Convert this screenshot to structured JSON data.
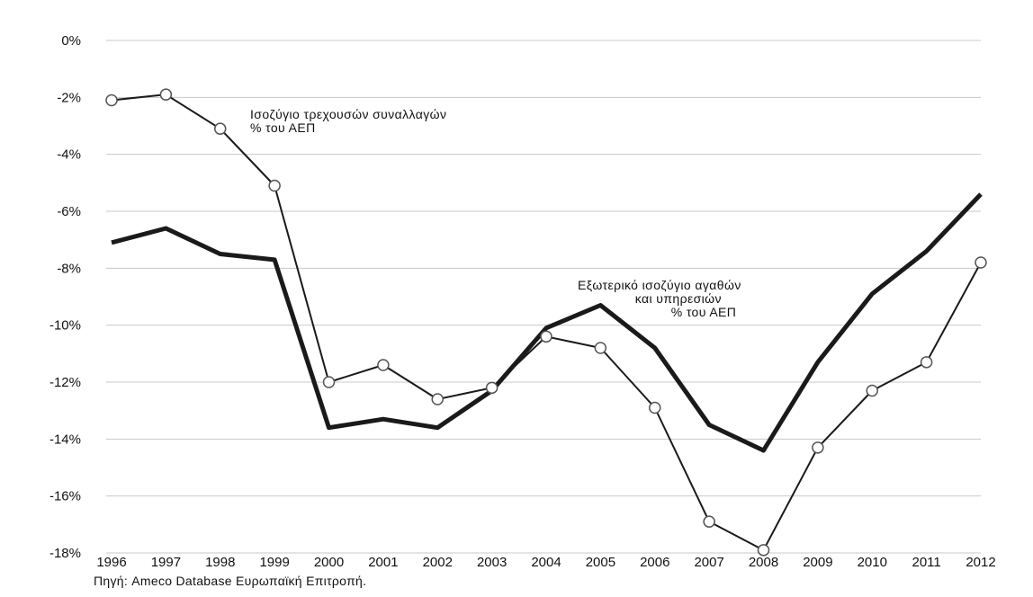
{
  "chart_data": {
    "type": "line",
    "x": [
      "1996",
      "1997",
      "1998",
      "1999",
      "2000",
      "2001",
      "2002",
      "2003",
      "2004",
      "2005",
      "2006",
      "2007",
      "2008",
      "2009",
      "2010",
      "2011",
      "2012"
    ],
    "ylim": [
      -18,
      0
    ],
    "yticks": [
      "0%",
      "-2%",
      "-4%",
      "-6%",
      "-8%",
      "-10%",
      "-12%",
      "-14%",
      "-16%",
      "-18%"
    ],
    "grid": true,
    "series": [
      {
        "name": "Ισοζύγιο τρεχουσών συναλλαγών % του ΑΕΠ",
        "style": "thin line with hollow circle markers",
        "color": "#1a1a1a",
        "values": [
          -2.1,
          -1.9,
          -3.1,
          -5.1,
          -12.0,
          -11.4,
          -12.6,
          -12.2,
          -10.4,
          -10.8,
          -12.9,
          -16.9,
          -17.9,
          -14.3,
          -12.3,
          -11.3,
          -7.8
        ]
      },
      {
        "name": "Εξωτερικό ισοζύγιο αγαθών και υπηρεσιών % του ΑΕΠ",
        "style": "thick line",
        "color": "#1a1a1a",
        "values": [
          -7.1,
          -6.6,
          -7.5,
          -7.7,
          -13.6,
          -13.3,
          -13.6,
          -12.3,
          -10.1,
          -9.3,
          -10.8,
          -13.5,
          -14.4,
          -11.3,
          -8.9,
          -7.4,
          -5.4
        ]
      }
    ],
    "annotations": [
      [
        "Ισοζύγιο τρεχουσών συναλλαγών",
        "% του ΑΕΠ"
      ],
      [
        "Εξωτερικό ισοζύγιο αγαθών",
        "και υπηρεσιών",
        "% του ΑΕΠ"
      ]
    ],
    "source": "Πηγή: Ameco Database Ευρωπαϊκή Επιτροπή."
  }
}
